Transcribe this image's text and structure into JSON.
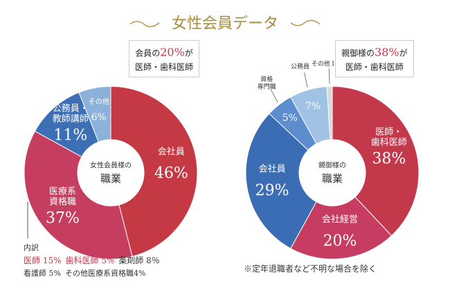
{
  "title": "女性会員データ",
  "chart_data": [
    {
      "type": "pie",
      "center_label": [
        "女性会員様の",
        "職業"
      ],
      "categories": [
        "会社員",
        "医療系\n資格職",
        "公務員・\n教師講師",
        "その他"
      ],
      "values": [
        46,
        37,
        11,
        6
      ],
      "value_labels": [
        "46%",
        "37%",
        "11%",
        "6%"
      ],
      "colors": [
        "#c53944",
        "#c53d5f",
        "#3d6fb5",
        "#8cb2dc"
      ],
      "callout": [
        "会員の",
        "20%",
        "が",
        "医師・歯科医師"
      ],
      "breakdown": {
        "title": "内訳",
        "items": [
          {
            "text": "医師 15%",
            "color": "#c8374a"
          },
          {
            "text": "歯科医師 5%",
            "color": "#c8374a"
          },
          {
            "text": "薬剤師 8％",
            "color": "#333333"
          },
          {
            "text": "看護師 5%",
            "color": "#333333"
          },
          {
            "text": "その他医療系資格職4%",
            "color": "#333333"
          }
        ]
      }
    },
    {
      "type": "pie",
      "center_label": [
        "親御様の",
        "職業"
      ],
      "categories": [
        "医師・\n歯科医師",
        "会社経営",
        "会社員",
        "資格\n専門職",
        "公務員",
        "その他"
      ],
      "values": [
        38,
        20,
        29,
        5,
        7,
        1
      ],
      "value_labels": [
        "38%",
        "20%",
        "29%",
        "5%",
        "7%",
        "1%"
      ],
      "colors": [
        "#c3384a",
        "#c73d62",
        "#3b6db5",
        "#5b8dcf",
        "#9fc2e5",
        "#d9d9d9"
      ],
      "callout": [
        "親御様の",
        "38%",
        "が",
        "医師・歯科医師"
      ]
    }
  ],
  "note": "※定年退職者など不明な場合を除く"
}
